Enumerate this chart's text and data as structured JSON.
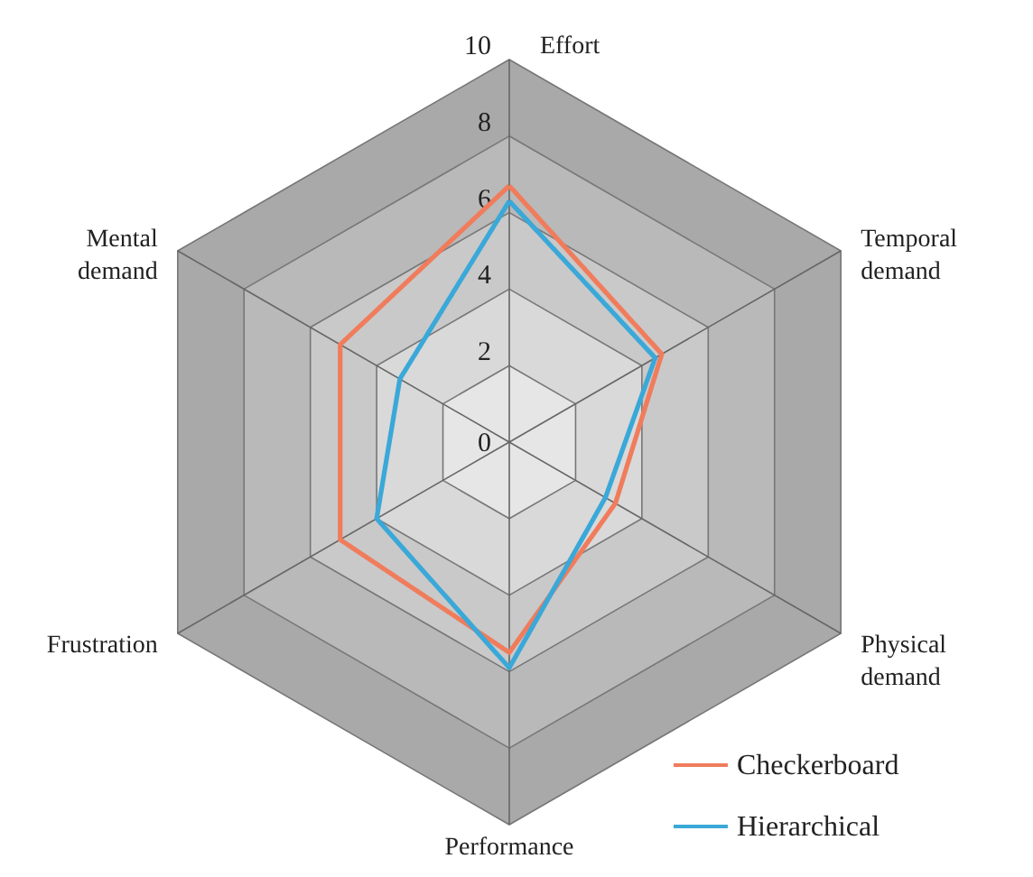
{
  "chart_data": {
    "type": "radar",
    "categories": [
      "Effort",
      "Temporal demand",
      "Physical demand",
      "Performance",
      "Frustration",
      "Mental demand"
    ],
    "series": [
      {
        "name": "Checkerboard",
        "color": "#f07c5c",
        "values": [
          6.7,
          4.6,
          3.2,
          5.5,
          5.1,
          5.1
        ]
      },
      {
        "name": "Hierarchical",
        "color": "#3aa8d8",
        "values": [
          6.3,
          4.4,
          2.9,
          5.9,
          4.0,
          3.3
        ]
      }
    ],
    "ylim": [
      0,
      10
    ],
    "yticks": [
      0,
      2,
      4,
      6,
      8,
      10
    ],
    "grid": true,
    "legend": "bottom right"
  }
}
